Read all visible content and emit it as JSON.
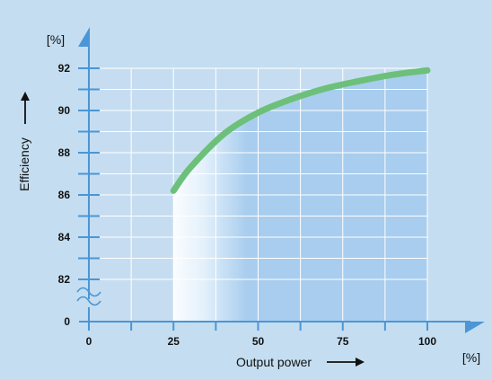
{
  "chart_data": {
    "type": "line",
    "title": "",
    "xlabel": "Output power",
    "ylabel": "Efficiency",
    "x_unit": "[%]",
    "y_unit": "[%]",
    "x": [
      25,
      30,
      40,
      50,
      60,
      70,
      80,
      90,
      100
    ],
    "series": [
      {
        "name": "",
        "values": [
          86.2,
          87.3,
          88.9,
          89.9,
          90.55,
          91.05,
          91.4,
          91.7,
          91.9
        ]
      }
    ],
    "x_ticks": [
      "0",
      "25",
      "50",
      "75",
      "100"
    ],
    "y_ticks": [
      "0",
      "82",
      "84",
      "86",
      "88",
      "90",
      "92"
    ],
    "xlim": [
      0,
      100
    ],
    "ylim_broken": [
      0,
      82,
      92
    ],
    "grid": true,
    "axis_break": "y-axis between 0 and 82",
    "area_fill": "under curve, gradient from white at 25 to light blue at 50-100",
    "colors": {
      "background": "#c4ddf0",
      "plot_area": "#c6ddf1",
      "fill_under_curve": "#a8cdee",
      "grid": "#ffffff",
      "axis": "#4a96d6",
      "curve": "#6cc07a",
      "text": "#111111"
    }
  }
}
